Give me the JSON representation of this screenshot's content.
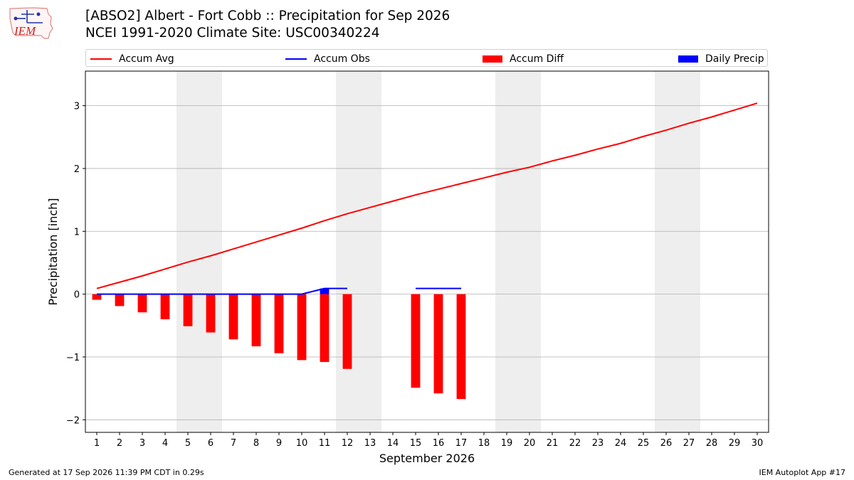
{
  "logo": {
    "text": "IEM"
  },
  "title": {
    "line1": "[ABSO2] Albert - Fort Cobb :: Precipitation for Sep 2026",
    "line2": "NCEI 1991-2020 Climate Site: USC00340224"
  },
  "legend": [
    {
      "label": "Accum Avg",
      "kind": "line",
      "color": "#ff0000"
    },
    {
      "label": "Accum Obs",
      "kind": "line",
      "color": "#0000ff"
    },
    {
      "label": "Accum Diff",
      "kind": "box",
      "color": "#ff0000"
    },
    {
      "label": "Daily Precip",
      "kind": "box",
      "color": "#0000ff"
    }
  ],
  "footer": {
    "generated": "Generated at 17 Sep 2026 11:39 PM CDT in 0.29s",
    "app": "IEM Autoplot App #17"
  },
  "chart_data": {
    "type": "bar",
    "xlabel": "September 2026",
    "ylabel": "Precipitation [inch]",
    "xlim": [
      0.5,
      30.5
    ],
    "ylim": [
      -2.2,
      3.55
    ],
    "yticks": [
      -2,
      -1,
      0,
      1,
      2,
      3
    ],
    "ytick_labels": [
      "−2",
      "−1",
      "0",
      "1",
      "2",
      "3"
    ],
    "xticks": [
      1,
      2,
      3,
      4,
      5,
      6,
      7,
      8,
      9,
      10,
      11,
      12,
      13,
      14,
      15,
      16,
      17,
      18,
      19,
      20,
      21,
      22,
      23,
      24,
      25,
      26,
      27,
      28,
      29,
      30
    ],
    "grid": "y",
    "weekend_shading": [
      [
        4.5,
        6.5
      ],
      [
        11.5,
        13.5
      ],
      [
        18.5,
        20.5
      ],
      [
        25.5,
        27.5
      ]
    ],
    "series": [
      {
        "name": "Accum Avg",
        "kind": "line",
        "color": "#ff0000",
        "x": [
          1,
          2,
          3,
          4,
          5,
          6,
          7,
          8,
          9,
          10,
          11,
          12,
          13,
          14,
          15,
          16,
          17,
          18,
          19,
          20,
          21,
          22,
          23,
          24,
          25,
          26,
          27,
          28,
          29,
          30
        ],
        "values": [
          0.09,
          0.19,
          0.29,
          0.4,
          0.51,
          0.61,
          0.72,
          0.83,
          0.94,
          1.05,
          1.17,
          1.28,
          1.38,
          1.48,
          1.58,
          1.67,
          1.76,
          1.85,
          1.94,
          2.02,
          2.12,
          2.21,
          2.31,
          2.4,
          2.51,
          2.61,
          2.72,
          2.82,
          2.93,
          3.04
        ]
      },
      {
        "name": "Accum Obs",
        "kind": "line",
        "color": "#0000ff",
        "segments": [
          {
            "x": [
              1,
              2,
              3,
              4,
              5,
              6,
              7,
              8,
              9,
              10,
              11,
              12
            ],
            "values": [
              0,
              0,
              0,
              0,
              0,
              0,
              0,
              0,
              0,
              0,
              0.09,
              0.09
            ]
          },
          {
            "x": [
              15,
              16,
              17
            ],
            "values": [
              0.09,
              0.09,
              0.09
            ]
          }
        ]
      },
      {
        "name": "Accum Diff",
        "kind": "bar",
        "color": "#ff0000",
        "x": [
          1,
          2,
          3,
          4,
          5,
          6,
          7,
          8,
          9,
          10,
          11,
          12,
          15,
          16,
          17
        ],
        "values": [
          -0.09,
          -0.19,
          -0.29,
          -0.4,
          -0.51,
          -0.61,
          -0.72,
          -0.83,
          -0.94,
          -1.05,
          -1.08,
          -1.19,
          -1.49,
          -1.58,
          -1.67
        ]
      },
      {
        "name": "Daily Precip",
        "kind": "bar",
        "color": "#0000ff",
        "x": [
          11
        ],
        "values": [
          0.09
        ]
      }
    ]
  }
}
